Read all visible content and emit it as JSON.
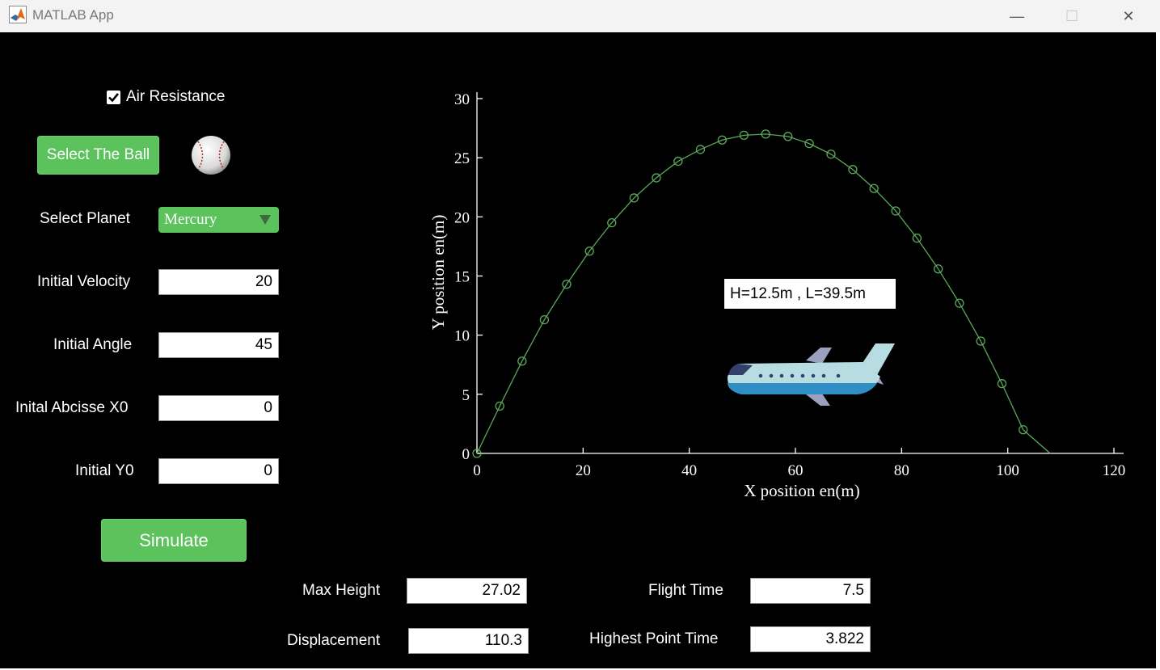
{
  "window": {
    "title": "MATLAB App",
    "minimize": "—",
    "maximize": "☐",
    "close": "✕"
  },
  "controls": {
    "air_resistance": {
      "label": "Air Resistance",
      "checked": true
    },
    "select_ball_label": "Select The Ball",
    "ball_icon": "baseball-icon",
    "select_planet": {
      "label": "Select Planet",
      "value": "Mercury"
    },
    "initial_velocity": {
      "label": "Initial Velocity",
      "value": "20"
    },
    "initial_angle": {
      "label": "Initial Angle",
      "value": "45"
    },
    "initial_x0": {
      "label": "Inital Abcisse X0",
      "value": "0"
    },
    "initial_y0": {
      "label": "Initial Y0",
      "value": "0"
    },
    "simulate_label": "Simulate"
  },
  "results": {
    "max_height": {
      "label": "Max Height",
      "value": "27.02"
    },
    "displacement": {
      "label": "Displacement",
      "value": "110.3"
    },
    "flight_time": {
      "label": "Flight Time",
      "value": "7.5"
    },
    "highest_point_time": {
      "label": "Highest Point Time",
      "value": "3.822"
    }
  },
  "annotation": "H=12.5m , L=39.5m",
  "plane_icon": "airplane-icon",
  "colors": {
    "accent": "#5cc25c",
    "curve": "#5aa85a",
    "background": "#000000"
  },
  "chart_data": {
    "type": "line",
    "xlabel": "X position en(m)",
    "ylabel": "Y position en(m)",
    "xlim": [
      0,
      120
    ],
    "ylim": [
      0,
      30
    ],
    "xticks": [
      0,
      20,
      40,
      60,
      80,
      100,
      120
    ],
    "yticks": [
      0,
      5,
      10,
      15,
      20,
      25,
      30
    ],
    "grid": false,
    "markers": "circle",
    "series": [
      {
        "x": [
          0,
          4.3,
          8.5,
          12.7,
          16.9,
          21.2,
          25.4,
          29.6,
          33.8,
          37.9,
          42.1,
          46.2,
          50.3,
          54.4,
          58.6,
          62.6,
          66.7,
          70.8,
          74.8,
          78.9,
          82.9,
          86.9,
          90.9,
          94.9,
          98.9,
          102.9,
          108
        ],
        "y": [
          0,
          4.0,
          7.8,
          11.3,
          14.3,
          17.1,
          19.5,
          21.6,
          23.3,
          24.7,
          25.7,
          26.5,
          26.9,
          27.0,
          26.8,
          26.2,
          25.3,
          24.0,
          22.4,
          20.5,
          18.2,
          15.6,
          12.7,
          9.5,
          5.9,
          2.0,
          0
        ]
      }
    ]
  }
}
